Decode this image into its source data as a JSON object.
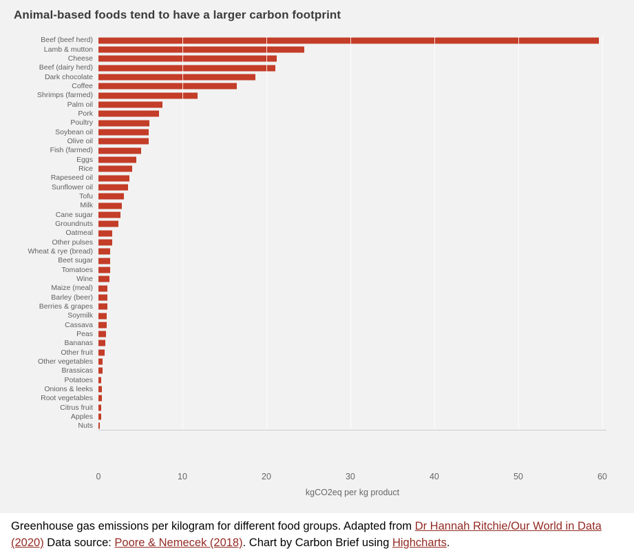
{
  "chart_data": {
    "type": "bar",
    "orientation": "horizontal",
    "title": "Animal-based foods tend to have a larger carbon footprint",
    "xlabel": "kgCO2eq per kg product",
    "xlim": [
      0,
      60.5
    ],
    "xticks": [
      0,
      10,
      20,
      30,
      40,
      50,
      60
    ],
    "grid": true,
    "legend": "none",
    "categories": [
      "Beef (beef herd)",
      "Lamb & mutton",
      "Cheese",
      "Beef (dairy herd)",
      "Dark chocolate",
      "Coffee",
      "Shrimps (farmed)",
      "Palm oil",
      "Pork",
      "Poultry",
      "Soybean oil",
      "Olive oil",
      "Fish (farmed)",
      "Eggs",
      "Rice",
      "Rapeseed oil",
      "Sunflower oil",
      "Tofu",
      "Milk",
      "Cane sugar",
      "Groundnuts",
      "Oatmeal",
      "Other pulses",
      "Wheat & rye (bread)",
      "Beet sugar",
      "Tomatoes",
      "Wine",
      "Maize (meal)",
      "Barley (beer)",
      "Berries & grapes",
      "Soymilk",
      "Cassava",
      "Peas",
      "Bananas",
      "Other fruit",
      "Other vegetables",
      "Brassicas",
      "Potatoes",
      "Onions & leeks",
      "Root vegetables",
      "Citrus fruit",
      "Apples",
      "Nuts"
    ],
    "values": [
      59.6,
      24.5,
      21.2,
      21.1,
      18.7,
      16.5,
      11.8,
      7.6,
      7.2,
      6.1,
      6.0,
      6.0,
      5.1,
      4.5,
      4.0,
      3.7,
      3.5,
      3.0,
      2.8,
      2.6,
      2.4,
      1.6,
      1.6,
      1.4,
      1.4,
      1.4,
      1.3,
      1.1,
      1.1,
      1.1,
      1.0,
      1.0,
      0.9,
      0.8,
      0.7,
      0.5,
      0.5,
      0.3,
      0.4,
      0.4,
      0.3,
      0.3,
      0.2
    ]
  },
  "caption": {
    "segments": [
      {
        "text": "Greenhouse gas emissions per kilogram for different food groups. Adapted from ",
        "link": false
      },
      {
        "text": "Dr Hannah Ritchie/Our World in Data (2020)",
        "link": true
      },
      {
        "text": " Data source: ",
        "link": false
      },
      {
        "text": "Poore & Nemecek (2018)",
        "link": true
      },
      {
        "text": ". Chart by Carbon Brief using ",
        "link": false
      },
      {
        "text": "Highcharts",
        "link": true
      },
      {
        "text": ".",
        "link": false
      }
    ]
  },
  "colors": {
    "bar": "#c33d28",
    "background": "#f2f2f2",
    "link": "#932a23",
    "axis_text": "#666666",
    "title_text": "#3b3b3b"
  }
}
